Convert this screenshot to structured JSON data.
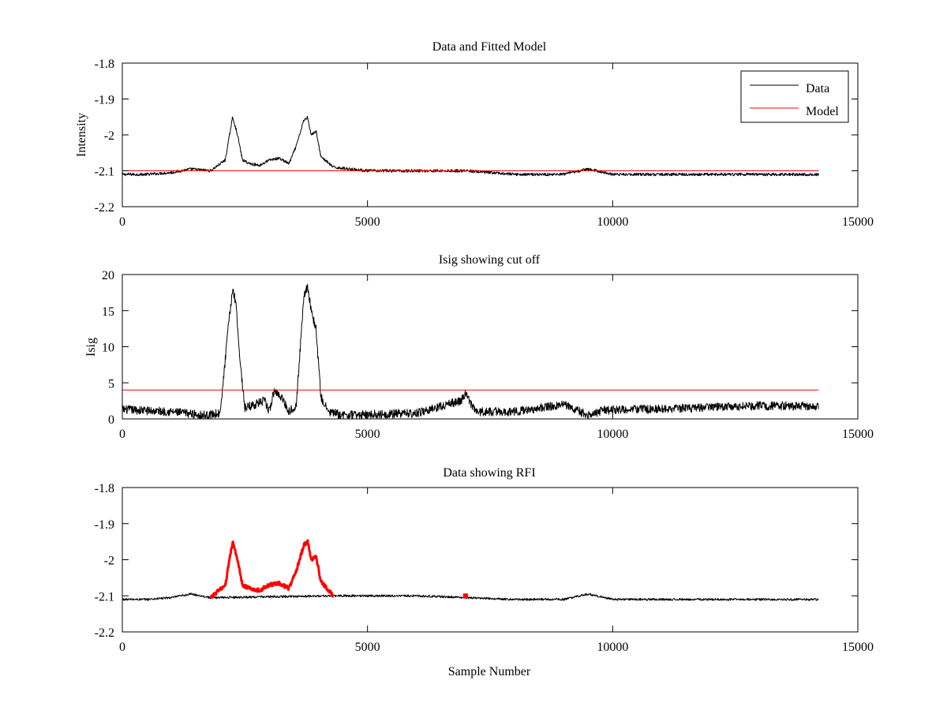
{
  "chart_data": [
    {
      "type": "line",
      "title": "Data and Fitted Model",
      "xlabel": "",
      "ylabel": "Intensity",
      "xlim": [
        0,
        15000
      ],
      "ylim": [
        -2.2,
        -1.8
      ],
      "xticks": [
        0,
        5000,
        10000,
        15000
      ],
      "yticks": [
        -2.2,
        -2.1,
        -2.0,
        -1.9,
        -1.8
      ],
      "ytick_labels": [
        "-2.2",
        "-2.1",
        "-2",
        "-1.9",
        "-1.8"
      ],
      "legend": {
        "placement": "top-right",
        "entries": [
          "Data",
          "Model"
        ]
      },
      "grid": false,
      "series": [
        {
          "name": "Data",
          "color": "#000000",
          "x": [
            0,
            500,
            1000,
            1400,
            1800,
            2100,
            2250,
            2350,
            2450,
            2600,
            2800,
            3000,
            3200,
            3400,
            3550,
            3700,
            3780,
            3850,
            3950,
            4050,
            4300,
            5000,
            6000,
            7000,
            8000,
            9000,
            9500,
            10000,
            11000,
            12000,
            13000,
            14200
          ],
          "y": [
            -2.11,
            -2.11,
            -2.105,
            -2.095,
            -2.1,
            -2.07,
            -1.95,
            -2.0,
            -2.07,
            -2.08,
            -2.085,
            -2.07,
            -2.065,
            -2.08,
            -2.03,
            -1.96,
            -1.95,
            -2.0,
            -1.99,
            -2.06,
            -2.09,
            -2.1,
            -2.1,
            -2.1,
            -2.11,
            -2.11,
            -2.095,
            -2.11,
            -2.11,
            -2.11,
            -2.11,
            -2.11
          ],
          "noise": 0.004
        },
        {
          "name": "Model",
          "color": "#ff0000",
          "x": [
            0,
            14200
          ],
          "y": [
            -2.1,
            -2.1
          ]
        }
      ]
    },
    {
      "type": "line",
      "title": "Isig showing cut off",
      "xlabel": "",
      "ylabel": "Isig",
      "xlim": [
        0,
        15000
      ],
      "ylim": [
        0,
        20
      ],
      "xticks": [
        0,
        5000,
        10000,
        15000
      ],
      "yticks": [
        0,
        5,
        10,
        15,
        20
      ],
      "ytick_labels": [
        "0",
        "5",
        "10",
        "15",
        "20"
      ],
      "grid": false,
      "series": [
        {
          "color": "#000000",
          "x": [
            0,
            1000,
            1700,
            2000,
            2150,
            2250,
            2320,
            2400,
            2500,
            2700,
            2900,
            3000,
            3100,
            3250,
            3400,
            3550,
            3700,
            3780,
            3850,
            3950,
            4050,
            4200,
            4500,
            6000,
            6900,
            7000,
            7200,
            8000,
            9000,
            9500,
            9800,
            11000,
            12000,
            13000,
            14200
          ],
          "y": [
            1.3,
            1.0,
            0.5,
            0.8,
            12,
            18,
            16,
            8,
            1.5,
            2,
            2.5,
            1,
            4,
            3,
            1,
            2,
            17,
            18.5,
            15,
            12.5,
            3,
            1,
            0.5,
            0.8,
            2.5,
            3.5,
            1,
            1,
            2,
            0.5,
            1.2,
            1.4,
            1.6,
            1.8,
            1.8
          ],
          "noise": 0.6
        },
        {
          "color": "#ff0000",
          "x": [
            0,
            14200
          ],
          "y": [
            4,
            4
          ]
        }
      ]
    },
    {
      "type": "line",
      "title": "Data showing RFI",
      "xlabel": "Sample Number",
      "ylabel": "",
      "xlim": [
        0,
        15000
      ],
      "ylim": [
        -2.2,
        -1.8
      ],
      "xticks": [
        0,
        5000,
        10000,
        15000
      ],
      "yticks": [
        -2.2,
        -2.1,
        -2.0,
        -1.9,
        -1.8
      ],
      "ytick_labels": [
        "-2.2",
        "-2.1",
        "-2",
        "-1.9",
        "-1.8"
      ],
      "grid": false,
      "series": [
        {
          "color": "#000000",
          "x": [
            0,
            500,
            1000,
            1400,
            1800,
            4300,
            5000,
            6000,
            7000,
            8000,
            9000,
            9500,
            10000,
            11000,
            12000,
            13000,
            14200
          ],
          "y": [
            -2.11,
            -2.11,
            -2.105,
            -2.095,
            -2.105,
            -2.1,
            -2.1,
            -2.1,
            -2.105,
            -2.11,
            -2.11,
            -2.095,
            -2.11,
            -2.11,
            -2.11,
            -2.11,
            -2.11
          ],
          "noise": 0.003
        },
        {
          "color": "#ff0000",
          "x": [
            1800,
            2100,
            2250,
            2350,
            2450,
            2600,
            2800,
            3000,
            3200,
            3400,
            3550,
            3700,
            3780,
            3850,
            3950,
            4050,
            4300
          ],
          "y": [
            -2.105,
            -2.07,
            -1.95,
            -2.0,
            -2.07,
            -2.08,
            -2.085,
            -2.07,
            -2.065,
            -2.08,
            -2.03,
            -1.96,
            -1.95,
            -2.0,
            -1.99,
            -2.06,
            -2.1
          ],
          "noise": 0.005
        },
        {
          "color": "#ff0000",
          "x": [
            6950,
            7050
          ],
          "y": [
            -2.1,
            -2.1
          ]
        }
      ]
    }
  ]
}
